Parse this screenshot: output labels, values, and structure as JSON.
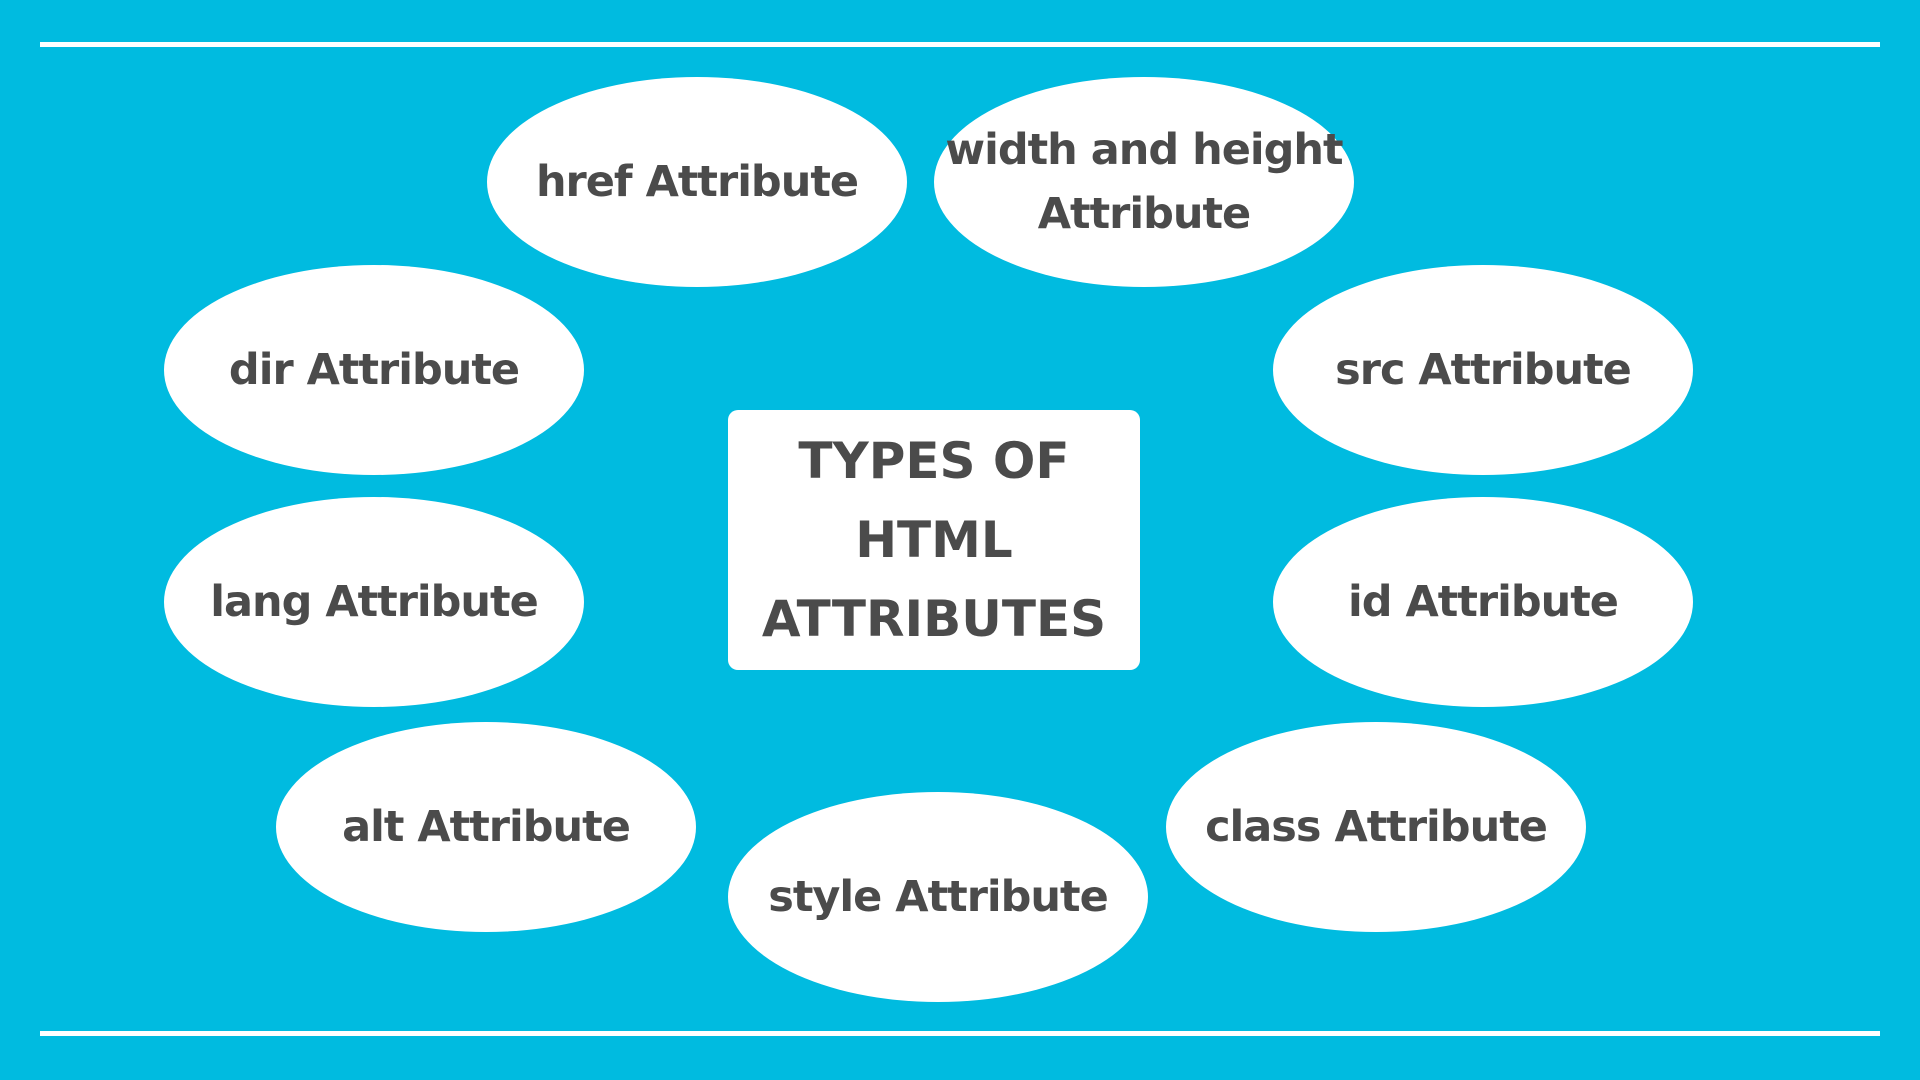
{
  "title": "TYPES OF\nHTML\nATTRIBUTES",
  "nodes": {
    "href": "href Attribute",
    "width_height": "width and height\nAttribute",
    "dir": "dir Attribute",
    "src": "src Attribute",
    "lang": "lang Attribute",
    "id": "id Attribute",
    "alt": "alt Attribute",
    "class": "class Attribute",
    "style": "style Attribute"
  },
  "colors": {
    "background": "#00bbe0",
    "shape_fill": "#ffffff",
    "text": "#4b4b4b"
  }
}
